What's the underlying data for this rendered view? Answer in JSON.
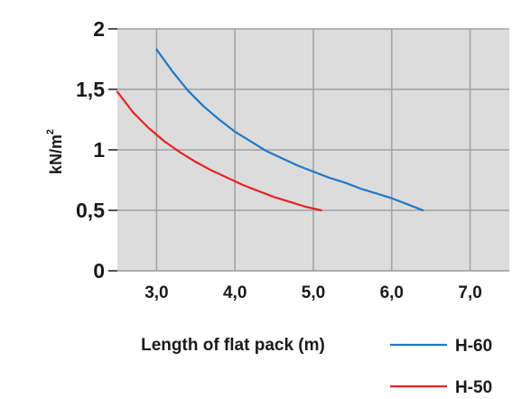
{
  "chart_data": {
    "type": "line",
    "title": "",
    "xlabel": "Length of flat pack (m)",
    "ylabel": "kN/m",
    "ylabel_superscript": "2",
    "xlim": [
      2.5,
      7.5
    ],
    "ylim": [
      0,
      2
    ],
    "x_tick_values": [
      3,
      4,
      5,
      6,
      7
    ],
    "x_tick_labels": [
      "3,0",
      "4,0",
      "5,0",
      "6,0",
      "7,0"
    ],
    "y_tick_values": [
      0,
      0.5,
      1,
      1.5,
      2
    ],
    "y_tick_labels": [
      "0",
      "0,5",
      "1",
      "1,5",
      "2"
    ],
    "grid": true,
    "background_color": "#dcdcdc",
    "grid_color": "#a0a0a0",
    "legend_position": "bottom-right",
    "series": [
      {
        "name": "H-60",
        "color": "#1f78c8",
        "x": [
          3.0,
          3.2,
          3.4,
          3.6,
          3.8,
          4.0,
          4.2,
          4.4,
          4.6,
          4.8,
          5.0,
          5.2,
          5.4,
          5.6,
          5.8,
          6.0,
          6.2,
          6.4
        ],
        "y": [
          1.83,
          1.65,
          1.49,
          1.36,
          1.25,
          1.15,
          1.07,
          0.99,
          0.93,
          0.87,
          0.82,
          0.77,
          0.73,
          0.68,
          0.64,
          0.6,
          0.55,
          0.5
        ]
      },
      {
        "name": "H-50",
        "color": "#e52326",
        "x": [
          2.5,
          2.7,
          2.9,
          3.1,
          3.3,
          3.5,
          3.7,
          3.9,
          4.1,
          4.3,
          4.5,
          4.7,
          4.9,
          5.1
        ],
        "y": [
          1.48,
          1.31,
          1.18,
          1.07,
          0.98,
          0.9,
          0.83,
          0.77,
          0.71,
          0.66,
          0.61,
          0.57,
          0.53,
          0.5
        ]
      }
    ]
  }
}
